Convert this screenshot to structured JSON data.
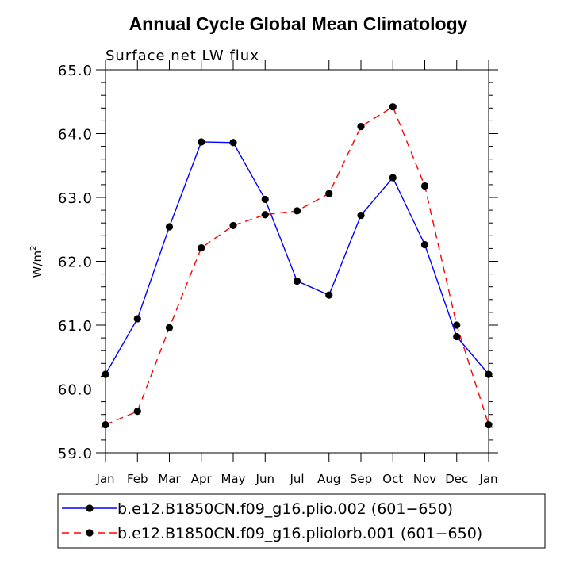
{
  "chart_data": {
    "type": "line",
    "title": "Annual Cycle Global Mean Climatology",
    "subtitle": "Surface net LW flux",
    "ylabel": "W/m",
    "ylabel_sup": "2",
    "xlabel": "",
    "ylim": [
      59.0,
      65.0
    ],
    "yticks": [
      "59.0",
      "60.0",
      "61.0",
      "62.0",
      "63.0",
      "64.0",
      "65.0"
    ],
    "categories": [
      "Jan",
      "Feb",
      "Mar",
      "Apr",
      "May",
      "Jun",
      "Jul",
      "Aug",
      "Sep",
      "Oct",
      "Nov",
      "Dec",
      "Jan"
    ],
    "grid": false,
    "legend_position": "bottom",
    "series": [
      {
        "name": "b.e12.B1850CN.f09_g16.plio.002 (601−650)",
        "color": "#0000ff",
        "dash": "solid",
        "values": [
          60.23,
          61.1,
          62.54,
          63.87,
          63.86,
          62.97,
          61.69,
          61.47,
          62.72,
          63.31,
          62.26,
          60.82,
          60.23
        ]
      },
      {
        "name": "b.e12.B1850CN.f09_g16.pliolorb.001 (601−650)",
        "color": "#ff0000",
        "dash": "dashed",
        "values": [
          59.44,
          59.65,
          60.96,
          62.21,
          62.56,
          62.73,
          62.79,
          63.06,
          64.11,
          64.42,
          63.18,
          61.0,
          59.44
        ]
      }
    ]
  }
}
